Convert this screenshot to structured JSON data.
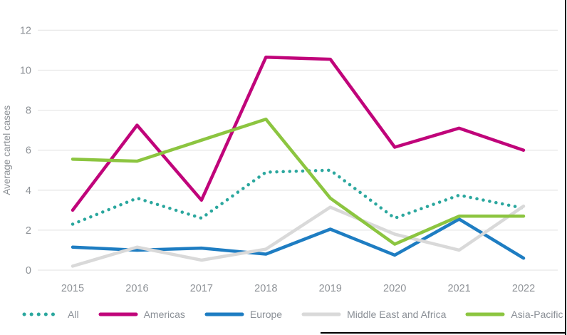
{
  "figure": {
    "border_color": "#000000",
    "background": "#ffffff"
  },
  "chart_data": {
    "type": "line",
    "ylabel": "Average cartel cases",
    "categories": [
      "2015",
      "2016",
      "2017",
      "2018",
      "2019",
      "2020",
      "2021",
      "2022"
    ],
    "yticks": [
      0,
      2,
      4,
      6,
      8,
      10,
      12
    ],
    "ylim": [
      0,
      12
    ],
    "grid": "horizontal",
    "gridline_color": "#e7e7e7",
    "axis_text_color": "#8e9297",
    "legend_position": "bottom",
    "series": [
      {
        "name": "All",
        "style": "dotted",
        "color": "#2ba79e",
        "values": [
          2.3,
          3.6,
          2.6,
          4.9,
          5.0,
          2.6,
          3.75,
          3.1
        ]
      },
      {
        "name": "Americas",
        "style": "solid",
        "color": "#c0047a",
        "values": [
          3.0,
          7.25,
          3.5,
          10.65,
          10.55,
          6.15,
          7.1,
          6.0
        ]
      },
      {
        "name": "Europe",
        "style": "solid",
        "color": "#1e7dc2",
        "values": [
          1.15,
          1.0,
          1.1,
          0.8,
          2.05,
          0.75,
          2.55,
          0.6
        ]
      },
      {
        "name": "Middle East and Africa",
        "style": "solid",
        "color": "#d9d9d9",
        "values": [
          0.2,
          1.15,
          0.5,
          1.05,
          3.15,
          1.8,
          1.0,
          3.2
        ]
      },
      {
        "name": "Asia-Pacific",
        "style": "solid",
        "color": "#8cc540",
        "values": [
          5.55,
          5.45,
          6.5,
          7.55,
          3.6,
          1.3,
          2.7,
          2.7
        ]
      }
    ]
  }
}
